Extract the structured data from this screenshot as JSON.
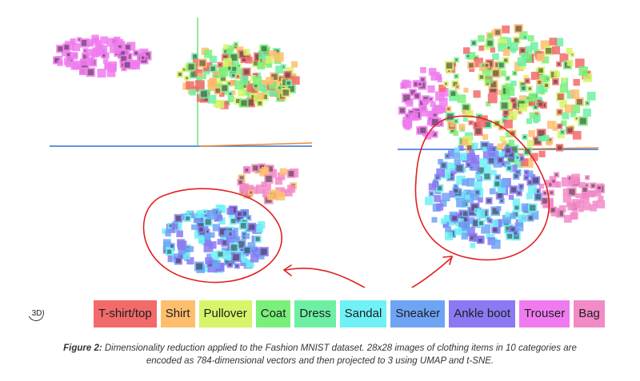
{
  "legend": {
    "items": [
      {
        "label": "T-shirt/top",
        "color": "#f26a6a"
      },
      {
        "label": "Shirt",
        "color": "#ffbe6e"
      },
      {
        "label": "Pullover",
        "color": "#d7f56b"
      },
      {
        "label": "Coat",
        "color": "#7af07a"
      },
      {
        "label": "Dress",
        "color": "#6ef0a4"
      },
      {
        "label": "Sandal",
        "color": "#6ff1f5"
      },
      {
        "label": "Sneaker",
        "color": "#6fa4f5"
      },
      {
        "label": "Ankle boot",
        "color": "#8a79f2"
      },
      {
        "label": "Trouser",
        "color": "#f07bf0"
      },
      {
        "label": "Bag",
        "color": "#f28ac8"
      }
    ]
  },
  "view_toggle": {
    "label": "3D",
    "icon": "rotate-3d-icon"
  },
  "caption": {
    "figure_label": "Figure 2:",
    "text": " Dimensionality reduction applied to the Fashion MNIST dataset. 28x28 images of clothing items in 10 categories are encoded as 784-dimensional vectors and then projected to 3 using UMAP and t-SNE."
  },
  "annotation_color": "#e02020"
}
